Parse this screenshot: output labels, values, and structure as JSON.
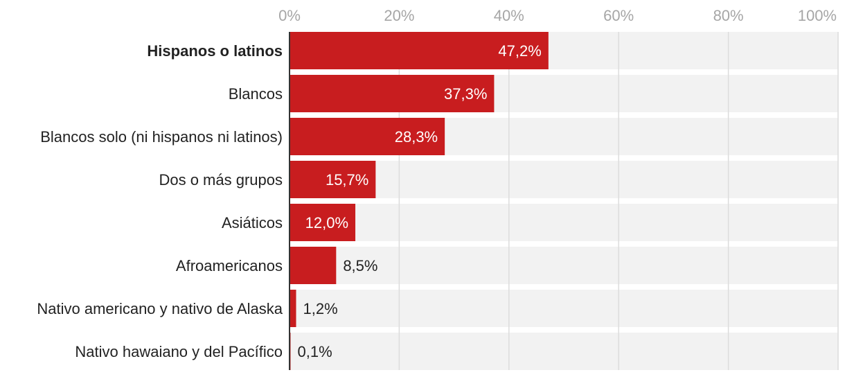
{
  "chart_data": {
    "type": "bar",
    "orientation": "horizontal",
    "categories": [
      "Hispanos o latinos",
      "Blancos",
      "Blancos solo (ni hispanos ni latinos)",
      "Dos o más grupos",
      "Asiáticos",
      "Afroamericanos",
      "Nativo americano y nativo de Alaska",
      "Nativo hawaiano y del Pacífico"
    ],
    "values": [
      47.2,
      37.3,
      28.3,
      15.7,
      12.0,
      8.5,
      1.2,
      0.1
    ],
    "value_labels": [
      "47,2%",
      "37,3%",
      "28,3%",
      "15,7%",
      "12,0%",
      "8,5%",
      "1,2%",
      "0,1%"
    ],
    "highlighted_category": "Hispanos o latinos",
    "xlim": [
      0,
      100
    ],
    "x_ticks": [
      0,
      20,
      40,
      60,
      80,
      100
    ],
    "x_tick_labels": [
      "0%",
      "20%",
      "40%",
      "60%",
      "80%",
      "100%"
    ],
    "x_axis_position": "top",
    "title": "",
    "xlabel": "",
    "ylabel": "",
    "grid": true,
    "colors": {
      "bar": "#c81d1f",
      "track": "#f2f2f2",
      "grid": "#dcdcdc",
      "baseline": "#333333",
      "label_inside": "#ffffff",
      "label_outside": "#222222",
      "tick_text": "#a6a6a6",
      "category_text": "#222222"
    }
  }
}
